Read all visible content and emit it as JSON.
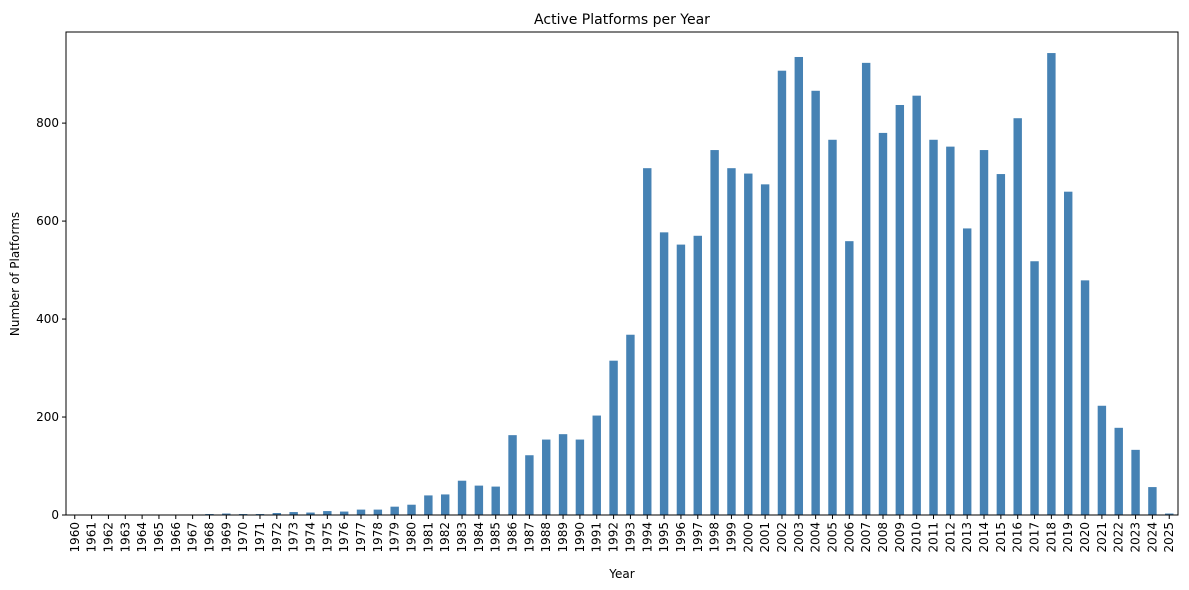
{
  "chart_data": {
    "type": "bar",
    "title": "Active Platforms per Year",
    "xlabel": "Year",
    "ylabel": "Number of Platforms",
    "ylim": [
      0,
      986
    ],
    "yticks": [
      0,
      200,
      400,
      600,
      800
    ],
    "bar_color": "#4682b4",
    "grid": false,
    "legend": "none",
    "categories": [
      "1960",
      "1961",
      "1962",
      "1963",
      "1964",
      "1965",
      "1966",
      "1967",
      "1968",
      "1969",
      "1970",
      "1971",
      "1972",
      "1973",
      "1974",
      "1975",
      "1976",
      "1977",
      "1978",
      "1979",
      "1980",
      "1981",
      "1982",
      "1983",
      "1984",
      "1985",
      "1986",
      "1987",
      "1988",
      "1989",
      "1990",
      "1991",
      "1992",
      "1993",
      "1994",
      "1995",
      "1996",
      "1997",
      "1998",
      "1999",
      "2000",
      "2001",
      "2002",
      "2003",
      "2004",
      "2005",
      "2006",
      "2007",
      "2008",
      "2009",
      "2010",
      "2011",
      "2012",
      "2013",
      "2014",
      "2015",
      "2016",
      "2017",
      "2018",
      "2019",
      "2020",
      "2021",
      "2022",
      "2023",
      "2024",
      "2025"
    ],
    "values": [
      1,
      1,
      1,
      1,
      1,
      1,
      1,
      1,
      2,
      3,
      2,
      2,
      4,
      6,
      5,
      8,
      7,
      11,
      11,
      17,
      21,
      40,
      42,
      70,
      60,
      58,
      163,
      122,
      154,
      165,
      154,
      203,
      315,
      368,
      708,
      577,
      552,
      570,
      745,
      708,
      697,
      675,
      907,
      935,
      866,
      766,
      559,
      923,
      780,
      837,
      856,
      766,
      752,
      585,
      745,
      696,
      810,
      518,
      943,
      660,
      479,
      223,
      178,
      133,
      57,
      3
    ]
  }
}
